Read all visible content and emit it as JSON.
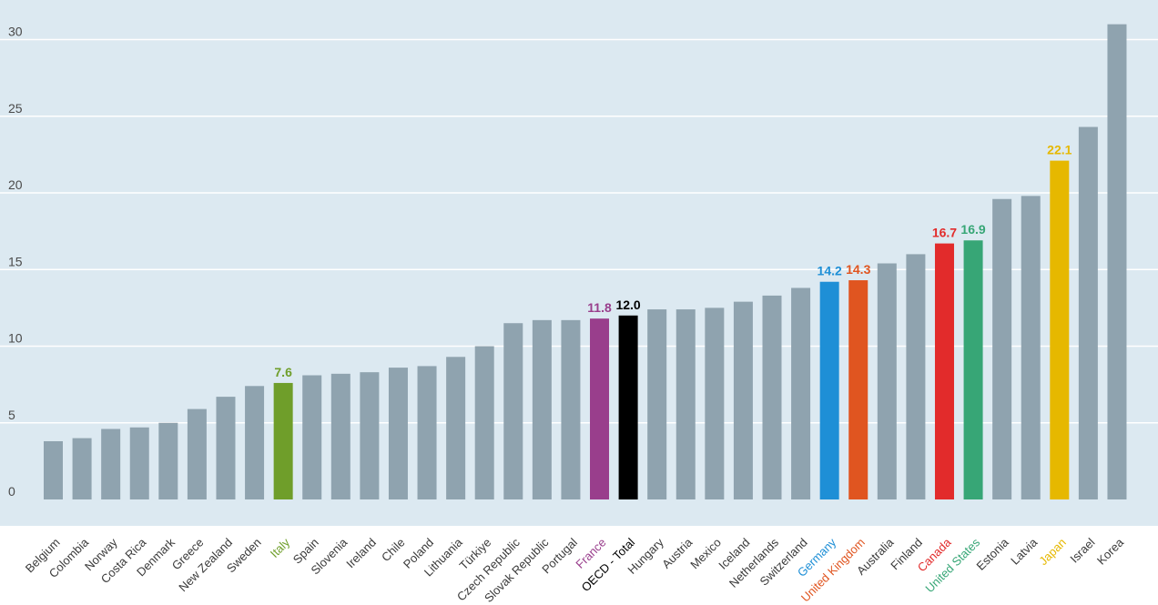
{
  "chart_data": {
    "type": "bar",
    "title": "",
    "xlabel": "",
    "ylabel": "",
    "ylim": [
      0,
      31
    ],
    "yticks": [
      "0",
      "5",
      "10",
      "15",
      "20",
      "25",
      "30"
    ],
    "grid": true,
    "background_color": "#dce9f1",
    "grid_color": "#ffffff",
    "default_bar_color": "#8fa3af",
    "categories": [
      "Belgium",
      "Colombia",
      "Norway",
      "Costa Rica",
      "Denmark",
      "Greece",
      "New Zealand",
      "Sweden",
      "Italy",
      "Spain",
      "Slovenia",
      "Ireland",
      "Chile",
      "Poland",
      "Lithuania",
      "Türkiye",
      "Czech Republic",
      "Slovak Republic",
      "Portugal",
      "France",
      "OECD - Total",
      "Hungary",
      "Austria",
      "Mexico",
      "Iceland",
      "Netherlands",
      "Switzerland",
      "Germany",
      "United Kingdom",
      "Australia",
      "Finland",
      "Canada",
      "United States",
      "Estonia",
      "Latvia",
      "Japan",
      "Israel",
      "Korea"
    ],
    "values": [
      3.8,
      4.0,
      4.6,
      4.7,
      5.0,
      5.9,
      6.7,
      7.4,
      7.6,
      8.1,
      8.2,
      8.3,
      8.6,
      8.7,
      9.3,
      10.0,
      11.5,
      11.7,
      11.7,
      11.8,
      12.0,
      12.4,
      12.4,
      12.5,
      12.9,
      13.3,
      13.8,
      14.2,
      14.3,
      15.4,
      16.0,
      16.7,
      16.9,
      19.6,
      19.8,
      22.1,
      24.3,
      31.0
    ],
    "highlights": [
      {
        "category": "Italy",
        "value_label": "7.6",
        "color": "#6f9e2a"
      },
      {
        "category": "France",
        "value_label": "11.8",
        "color": "#993e8c"
      },
      {
        "category": "OECD - Total",
        "value_label": "12.0",
        "color": "#000000"
      },
      {
        "category": "Germany",
        "value_label": "14.2",
        "color": "#1e8fd6"
      },
      {
        "category": "United Kingdom",
        "value_label": "14.3",
        "color": "#e05520"
      },
      {
        "category": "Canada",
        "value_label": "16.7",
        "color": "#e22b2b"
      },
      {
        "category": "United States",
        "value_label": "16.9",
        "color": "#37a676"
      },
      {
        "category": "Japan",
        "value_label": "22.1",
        "color": "#e6b800"
      }
    ]
  }
}
